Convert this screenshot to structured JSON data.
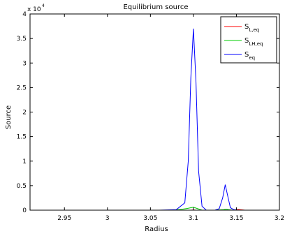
{
  "chart_data": {
    "type": "line",
    "title": "Equilibrium source",
    "xlabel": "Radius",
    "ylabel": "Source",
    "y_exponent_base": "x 10",
    "y_exponent_power": "4",
    "xlim": [
      2.91,
      3.2
    ],
    "ylim": [
      0,
      40000
    ],
    "x_ticks": [
      2.95,
      3,
      3.05,
      3.1,
      3.15,
      3.2
    ],
    "x_tick_labels": [
      "2.95",
      "3",
      "3.05",
      "3.1",
      "3.15",
      "3.2"
    ],
    "y_ticks": [
      0,
      5000,
      10000,
      15000,
      20000,
      25000,
      30000,
      35000,
      40000
    ],
    "y_tick_labels": [
      "0",
      "0.5",
      "1",
      "1.5",
      "2",
      "2.5",
      "3",
      "3.5",
      "4"
    ],
    "grid": false,
    "legend_position": "top-right",
    "series": [
      {
        "name_main": "S",
        "name_sub": "L,eq",
        "color": "#ff0000",
        "x": [
          2.91,
          3.08,
          3.09,
          3.097,
          3.1,
          3.103,
          3.11,
          3.125,
          3.13,
          3.135,
          3.138,
          3.141,
          3.146,
          3.152,
          3.16,
          3.2
        ],
        "y": [
          0,
          0,
          0,
          0,
          50,
          0,
          0,
          0,
          0,
          0,
          0,
          0,
          0,
          150,
          0,
          0
        ]
      },
      {
        "name_main": "S",
        "name_sub": "LH,eq",
        "color": "#00cc00",
        "x": [
          2.91,
          3.075,
          3.085,
          3.093,
          3.1,
          3.105,
          3.11,
          3.125,
          3.135,
          3.138,
          3.141,
          3.146,
          3.152,
          3.16,
          3.2
        ],
        "y": [
          0,
          0,
          150,
          350,
          600,
          300,
          0,
          0,
          100,
          200,
          100,
          0,
          0,
          0,
          0
        ]
      },
      {
        "name_main": "S",
        "name_sub": "eq",
        "color": "#0000ff",
        "x": [
          2.91,
          3.06,
          3.08,
          3.09,
          3.094,
          3.097,
          3.1,
          3.103,
          3.106,
          3.11,
          3.115,
          3.125,
          3.13,
          3.134,
          3.137,
          3.14,
          3.143,
          3.147,
          3.152,
          3.16,
          3.2
        ],
        "y": [
          0,
          0,
          100,
          1500,
          10000,
          27000,
          37000,
          26000,
          8000,
          800,
          0,
          0,
          300,
          2500,
          5200,
          2800,
          500,
          100,
          0,
          0,
          0
        ]
      }
    ]
  }
}
